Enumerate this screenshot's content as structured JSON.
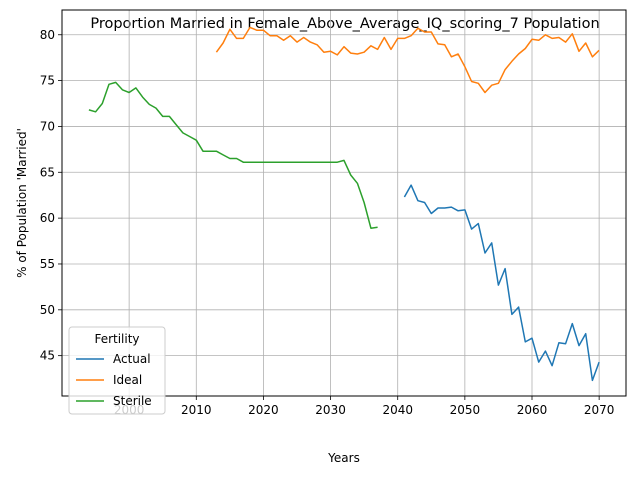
{
  "chart_data": {
    "type": "line",
    "title": "Proportion Married in Female_Above_Average_IQ_scoring_7 Population",
    "xlabel": "Years",
    "ylabel": "% of Population 'Married'",
    "xlim": [
      1990,
      2074
    ],
    "ylim": [
      40.6,
      82.7
    ],
    "grid": true,
    "x_ticks": [
      2000,
      2010,
      2020,
      2030,
      2040,
      2050,
      2060,
      2070
    ],
    "y_ticks": [
      45,
      50,
      55,
      60,
      65,
      70,
      75,
      80
    ],
    "legend": {
      "title": "Fertility",
      "position": "lower-left"
    },
    "series": [
      {
        "name": "Actual",
        "color": "#1f77b4",
        "x": [
          2041,
          2042,
          2043,
          2044,
          2045,
          2046,
          2047,
          2048,
          2049,
          2050,
          2051,
          2052,
          2053,
          2054,
          2055,
          2056,
          2057,
          2058,
          2059,
          2060,
          2061,
          2062,
          2063,
          2064,
          2065,
          2066,
          2067,
          2068,
          2069,
          2070
        ],
        "y": [
          62.3,
          63.6,
          61.9,
          61.7,
          60.5,
          61.1,
          61.1,
          61.2,
          60.8,
          60.9,
          58.8,
          59.4,
          56.2,
          57.3,
          52.7,
          54.5,
          49.5,
          50.3,
          46.5,
          46.9,
          44.3,
          45.5,
          43.9,
          46.4,
          46.3,
          48.5,
          46.1,
          47.4,
          42.3,
          44.3
        ]
      },
      {
        "name": "Ideal",
        "color": "#ff7f0e",
        "x": [
          2013,
          2014,
          2015,
          2016,
          2017,
          2018,
          2019,
          2020,
          2021,
          2022,
          2023,
          2024,
          2025,
          2026,
          2027,
          2028,
          2029,
          2030,
          2031,
          2032,
          2033,
          2034,
          2035,
          2036,
          2037,
          2038,
          2039,
          2040,
          2041,
          2042,
          2043,
          2044,
          2045,
          2046,
          2047,
          2048,
          2049,
          2050,
          2051,
          2052,
          2053,
          2054,
          2055,
          2056,
          2057,
          2058,
          2059,
          2060,
          2061,
          2062,
          2063,
          2064,
          2065,
          2066,
          2067,
          2068,
          2069,
          2070
        ],
        "y": [
          78.1,
          79.1,
          80.6,
          79.6,
          79.6,
          80.8,
          80.5,
          80.5,
          79.9,
          79.9,
          79.4,
          79.9,
          79.2,
          79.7,
          79.2,
          78.9,
          78.1,
          78.2,
          77.8,
          78.7,
          78.0,
          77.9,
          78.1,
          78.8,
          78.4,
          79.7,
          78.4,
          79.6,
          79.6,
          79.9,
          80.7,
          80.3,
          80.3,
          79.0,
          78.9,
          77.6,
          77.9,
          76.5,
          74.9,
          74.7,
          73.7,
          74.5,
          74.7,
          76.2,
          77.1,
          77.9,
          78.5,
          79.5,
          79.4,
          80.0,
          79.6,
          79.7,
          79.2,
          80.1,
          78.2,
          79.1,
          77.6,
          78.3
        ]
      },
      {
        "name": "Sterile",
        "color": "#2ca02c",
        "x": [
          1994,
          1995,
          1996,
          1997,
          1998,
          1999,
          2000,
          2001,
          2002,
          2003,
          2004,
          2005,
          2006,
          2007,
          2008,
          2009,
          2010,
          2011,
          2012,
          2013,
          2014,
          2015,
          2016,
          2017,
          2018,
          2019,
          2020,
          2021,
          2022,
          2023,
          2024,
          2025,
          2026,
          2027,
          2028,
          2029,
          2030,
          2031,
          2032,
          2033,
          2034,
          2035,
          2036,
          2037
        ],
        "y": [
          71.8,
          71.6,
          72.5,
          74.6,
          74.8,
          74.0,
          73.7,
          74.2,
          73.2,
          72.4,
          72.0,
          71.1,
          71.1,
          70.2,
          69.3,
          68.9,
          68.5,
          67.3,
          67.3,
          67.3,
          66.9,
          66.5,
          66.5,
          66.1,
          66.1,
          66.1,
          66.1,
          66.1,
          66.1,
          66.1,
          66.1,
          66.1,
          66.1,
          66.1,
          66.1,
          66.1,
          66.1,
          66.1,
          66.3,
          64.7,
          63.8,
          61.7,
          58.9,
          59.0
        ]
      }
    ]
  }
}
